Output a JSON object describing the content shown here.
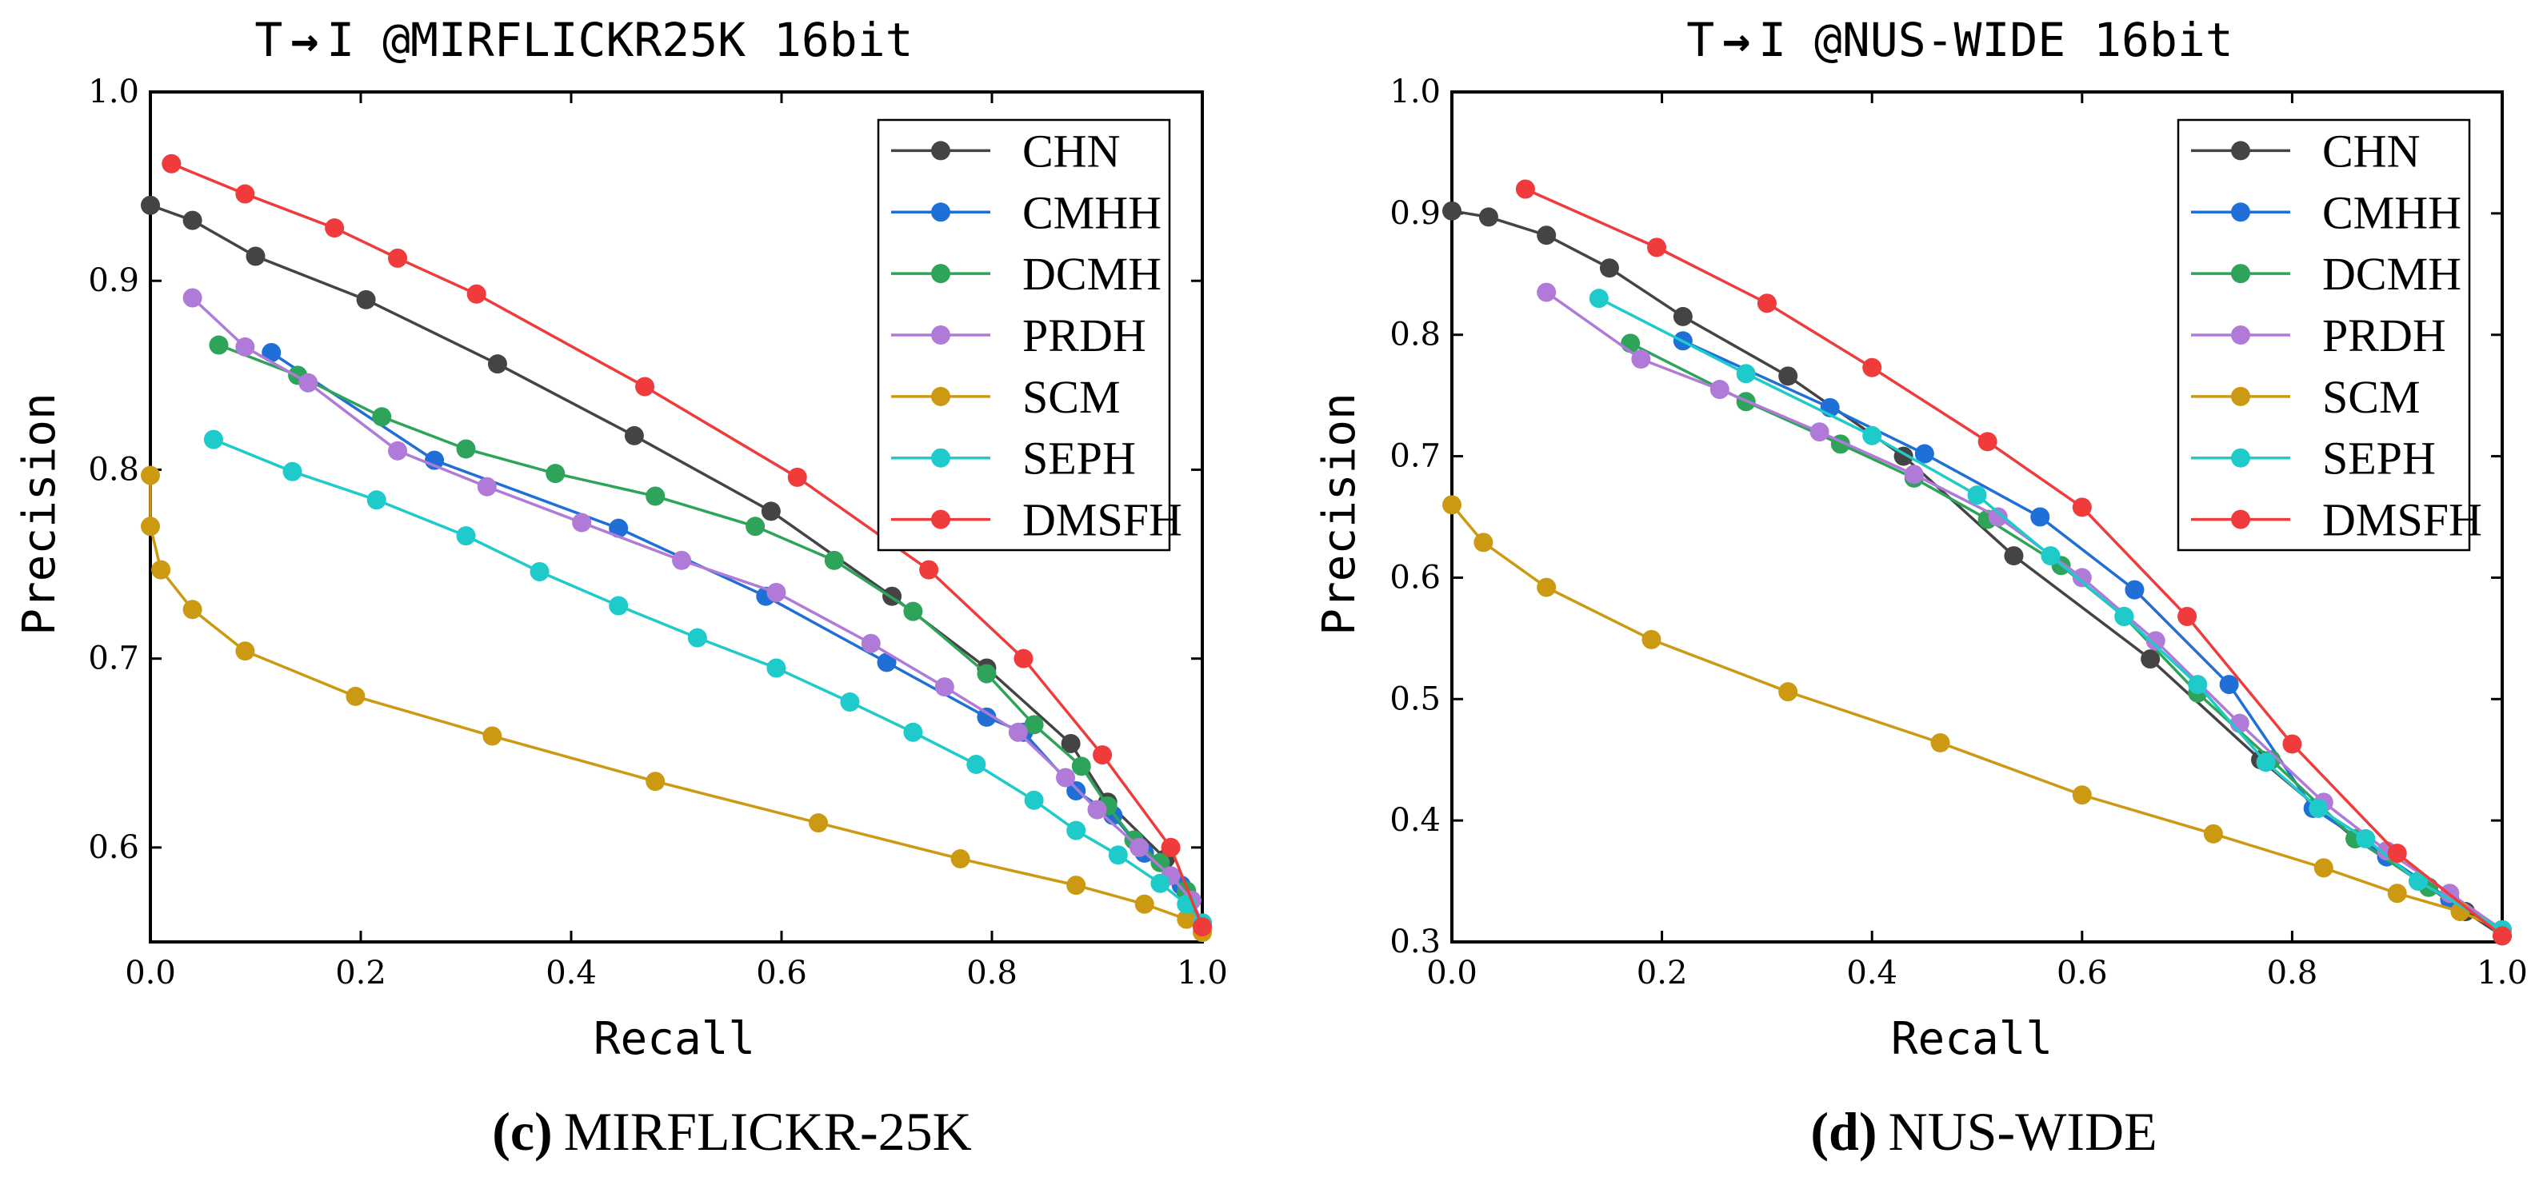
{
  "colors": {
    "CHN": "#444444",
    "CMHH": "#1f6fd6",
    "DCMH": "#2ea35a",
    "PRDH": "#b07ad8",
    "SCM": "#cc9a12",
    "SEPH": "#1fcaca",
    "DMSFH": "#ef3b3b"
  },
  "chart_data": [
    {
      "type": "line",
      "title": "T→I @MIRFLICKR25K 16bit",
      "title_prefix": "T",
      "title_suffix": "I @MIRFLICKR25K 16bit",
      "caption_label": "(c)",
      "caption_text": "MIRFLICKR-25K",
      "xlabel": "Recall",
      "ylabel": "Precision",
      "xlim": [
        0.0,
        1.0
      ],
      "ylim": [
        0.55,
        1.0
      ],
      "xticks": [
        0.0,
        0.2,
        0.4,
        0.6,
        0.8,
        1.0
      ],
      "xtick_labels": [
        "0.0",
        "0.2",
        "0.4",
        "0.6",
        "0.8",
        "1.0"
      ],
      "yticks": [
        0.6,
        0.7,
        0.8,
        0.9,
        1.0
      ],
      "ytick_labels": [
        "0.6",
        "0.7",
        "0.8",
        "0.9",
        "1.0"
      ],
      "grid": false,
      "legend_position": "top-right",
      "series": [
        {
          "name": "CHN",
          "x": [
            0.0,
            0.04,
            0.1,
            0.205,
            0.33,
            0.46,
            0.59,
            0.705,
            0.795,
            0.875,
            0.91,
            0.965,
            0.985,
            1.0
          ],
          "y": [
            0.94,
            0.932,
            0.913,
            0.89,
            0.856,
            0.818,
            0.778,
            0.733,
            0.695,
            0.655,
            0.624,
            0.594,
            0.575,
            0.56
          ]
        },
        {
          "name": "CMHH",
          "x": [
            0.115,
            0.27,
            0.445,
            0.585,
            0.7,
            0.795,
            0.83,
            0.88,
            0.915,
            0.945,
            0.98,
            1.0
          ],
          "y": [
            0.862,
            0.805,
            0.769,
            0.733,
            0.698,
            0.669,
            0.661,
            0.63,
            0.617,
            0.597,
            0.58,
            0.56
          ]
        },
        {
          "name": "DCMH",
          "x": [
            0.065,
            0.14,
            0.22,
            0.3,
            0.385,
            0.48,
            0.575,
            0.65,
            0.725,
            0.795,
            0.84,
            0.885,
            0.91,
            0.935,
            0.96,
            0.985,
            1.0
          ],
          "y": [
            0.866,
            0.85,
            0.828,
            0.811,
            0.798,
            0.786,
            0.77,
            0.752,
            0.725,
            0.692,
            0.665,
            0.643,
            0.622,
            0.604,
            0.592,
            0.577,
            0.56
          ]
        },
        {
          "name": "PRDH",
          "x": [
            0.04,
            0.09,
            0.15,
            0.235,
            0.32,
            0.41,
            0.505,
            0.595,
            0.685,
            0.755,
            0.825,
            0.87,
            0.9,
            0.94,
            0.97,
            0.99,
            1.0
          ],
          "y": [
            0.891,
            0.865,
            0.846,
            0.81,
            0.791,
            0.772,
            0.752,
            0.735,
            0.708,
            0.685,
            0.661,
            0.637,
            0.62,
            0.6,
            0.585,
            0.572,
            0.56
          ]
        },
        {
          "name": "SCM",
          "x": [
            0.0,
            0.0,
            0.01,
            0.04,
            0.09,
            0.195,
            0.325,
            0.48,
            0.635,
            0.77,
            0.88,
            0.945,
            0.985,
            1.0
          ],
          "y": [
            0.797,
            0.77,
            0.747,
            0.726,
            0.704,
            0.68,
            0.659,
            0.635,
            0.613,
            0.594,
            0.58,
            0.57,
            0.562,
            0.555
          ]
        },
        {
          "name": "SEPH",
          "x": [
            0.06,
            0.135,
            0.215,
            0.3,
            0.37,
            0.445,
            0.52,
            0.595,
            0.665,
            0.725,
            0.785,
            0.84,
            0.88,
            0.92,
            0.96,
            0.985,
            1.0
          ],
          "y": [
            0.816,
            0.799,
            0.784,
            0.765,
            0.746,
            0.728,
            0.711,
            0.695,
            0.677,
            0.661,
            0.644,
            0.625,
            0.609,
            0.596,
            0.581,
            0.57,
            0.56
          ]
        },
        {
          "name": "DMSFH",
          "x": [
            0.02,
            0.09,
            0.175,
            0.235,
            0.31,
            0.47,
            0.615,
            0.74,
            0.83,
            0.905,
            0.97,
            1.0
          ],
          "y": [
            0.962,
            0.946,
            0.928,
            0.912,
            0.893,
            0.844,
            0.796,
            0.747,
            0.7,
            0.649,
            0.6,
            0.558
          ]
        }
      ]
    },
    {
      "type": "line",
      "title": "T→I @NUS-WIDE 16bit",
      "title_prefix": "T",
      "title_suffix": "I @NUS-WIDE 16bit",
      "caption_label": "(d)",
      "caption_text": "NUS-WIDE",
      "xlabel": "Recall",
      "ylabel": "Precision",
      "xlim": [
        0.0,
        1.0
      ],
      "ylim": [
        0.3,
        1.0
      ],
      "xticks": [
        0.0,
        0.2,
        0.4,
        0.6,
        0.8,
        1.0
      ],
      "xtick_labels": [
        "0.0",
        "0.2",
        "0.4",
        "0.6",
        "0.8",
        "1.0"
      ],
      "yticks": [
        0.3,
        0.4,
        0.5,
        0.6,
        0.7,
        0.8,
        0.9,
        1.0
      ],
      "ytick_labels": [
        "0.3",
        "0.4",
        "0.5",
        "0.6",
        "0.7",
        "0.8",
        "0.9",
        "1.0"
      ],
      "grid": false,
      "legend_position": "top-right",
      "series": [
        {
          "name": "CHN",
          "x": [
            0.0,
            0.035,
            0.09,
            0.15,
            0.22,
            0.32,
            0.43,
            0.535,
            0.665,
            0.77,
            0.86,
            0.93,
            0.965,
            1.0
          ],
          "y": [
            0.902,
            0.897,
            0.882,
            0.855,
            0.815,
            0.766,
            0.7,
            0.618,
            0.533,
            0.45,
            0.385,
            0.345,
            0.325,
            0.305
          ]
        },
        {
          "name": "CMHH",
          "x": [
            0.22,
            0.36,
            0.45,
            0.56,
            0.65,
            0.74,
            0.82,
            0.89,
            0.95,
            1.0
          ],
          "y": [
            0.795,
            0.74,
            0.702,
            0.65,
            0.59,
            0.512,
            0.41,
            0.37,
            0.335,
            0.31
          ]
        },
        {
          "name": "DCMH",
          "x": [
            0.17,
            0.28,
            0.37,
            0.44,
            0.51,
            0.58,
            0.64,
            0.71,
            0.78,
            0.86,
            0.93,
            1.0
          ],
          "y": [
            0.793,
            0.745,
            0.71,
            0.682,
            0.648,
            0.61,
            0.568,
            0.505,
            0.45,
            0.385,
            0.345,
            0.31
          ]
        },
        {
          "name": "PRDH",
          "x": [
            0.09,
            0.18,
            0.255,
            0.35,
            0.44,
            0.52,
            0.6,
            0.67,
            0.75,
            0.83,
            0.89,
            0.95,
            1.0
          ],
          "y": [
            0.835,
            0.78,
            0.755,
            0.72,
            0.685,
            0.65,
            0.6,
            0.548,
            0.48,
            0.415,
            0.375,
            0.34,
            0.31
          ]
        },
        {
          "name": "SCM",
          "x": [
            0.0,
            0.03,
            0.09,
            0.19,
            0.32,
            0.465,
            0.6,
            0.725,
            0.83,
            0.9,
            0.96,
            1.0
          ],
          "y": [
            0.66,
            0.629,
            0.592,
            0.549,
            0.506,
            0.464,
            0.421,
            0.389,
            0.361,
            0.34,
            0.325,
            0.31
          ]
        },
        {
          "name": "SEPH",
          "x": [
            0.14,
            0.28,
            0.4,
            0.5,
            0.57,
            0.64,
            0.71,
            0.775,
            0.825,
            0.87,
            0.92,
            1.0
          ],
          "y": [
            0.83,
            0.768,
            0.717,
            0.668,
            0.618,
            0.568,
            0.512,
            0.448,
            0.41,
            0.385,
            0.35,
            0.31
          ]
        },
        {
          "name": "DMSFH",
          "x": [
            0.07,
            0.195,
            0.3,
            0.4,
            0.51,
            0.6,
            0.7,
            0.8,
            0.9,
            1.0
          ],
          "y": [
            0.92,
            0.872,
            0.826,
            0.773,
            0.712,
            0.658,
            0.568,
            0.463,
            0.373,
            0.305
          ]
        }
      ]
    }
  ]
}
